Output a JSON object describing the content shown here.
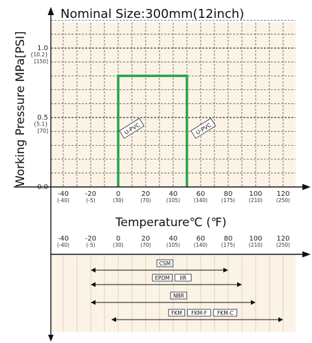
{
  "colors": {
    "plot_background": "#fbf3e6",
    "grid": "#555555",
    "series_line": "#22a64a",
    "axis": "#111111"
  },
  "chart_data": {
    "type": "line",
    "title": "Nominal Size:300mm(12inch)",
    "xlabel": "Temperature℃ (℉)",
    "ylabel": "Working Pressure MPa[PSI]",
    "grid": true,
    "xlim": [
      -50,
      130
    ],
    "ylim": [
      0,
      1.3
    ],
    "x_ticks": [
      {
        "label": "-40",
        "sub": "(-40)",
        "value": -40
      },
      {
        "label": "-20",
        "sub": "(-5)",
        "value": -20
      },
      {
        "label": "0",
        "sub": "(30)",
        "value": 0
      },
      {
        "label": "20",
        "sub": "(70)",
        "value": 20
      },
      {
        "label": "40",
        "sub": "(105)",
        "value": 40
      },
      {
        "label": "60",
        "sub": "(140)",
        "value": 60
      },
      {
        "label": "80",
        "sub": "(175)",
        "value": 80
      },
      {
        "label": "100",
        "sub": "(210)",
        "value": 100
      },
      {
        "label": "120",
        "sub": "(250)",
        "value": 120
      }
    ],
    "y_ticks": [
      {
        "label": "0.0",
        "value": 0.0,
        "sub": []
      },
      {
        "label": "0.5",
        "value": 0.5,
        "sub": [
          "{5.1}",
          "[70]"
        ]
      },
      {
        "label": "1.0",
        "value": 1.0,
        "sub": [
          "{10.2}",
          "[150]"
        ]
      }
    ],
    "series": [
      {
        "x": [
          0,
          0,
          50,
          50
        ],
        "y": [
          0,
          0.8,
          0.8,
          0
        ]
      }
    ],
    "series_labels": [
      {
        "text": "U-PVC",
        "x": 10,
        "y": 0.42
      },
      {
        "text": "U-PVC",
        "x": 62,
        "y": 0.42
      }
    ],
    "seal_ranges": [
      {
        "labels": [
          "CSM"
        ],
        "min": -20,
        "max": 80
      },
      {
        "labels": [
          "EPDM",
          "IIR"
        ],
        "min": -20,
        "max": 90
      },
      {
        "labels": [
          "NBR"
        ],
        "min": -20,
        "max": 100
      },
      {
        "labels": [
          "FKM",
          "FKM-F",
          "FKM-C"
        ],
        "min": -5,
        "max": 120
      }
    ]
  }
}
